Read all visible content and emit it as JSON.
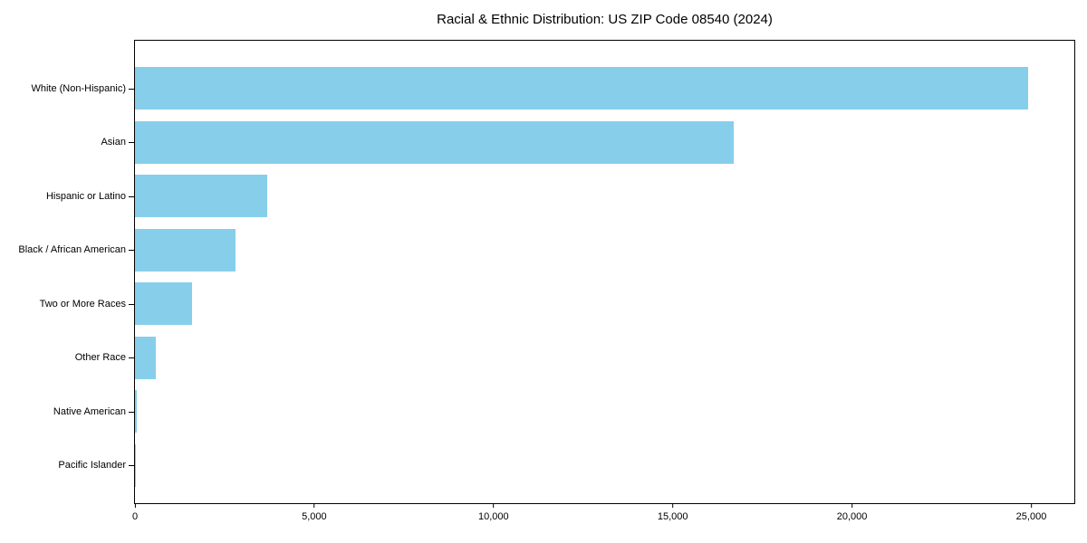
{
  "title": "Racial & Ethnic Distribution: US ZIP Code 08540 (2024)",
  "chart_data": {
    "type": "bar",
    "orientation": "horizontal",
    "title": "Racial & Ethnic Distribution: US ZIP Code 08540 (2024)",
    "categories": [
      "White (Non-Hispanic)",
      "Asian",
      "Hispanic or Latino",
      "Black / African American",
      "Two or More Races",
      "Other Race",
      "Native American",
      "Pacific Islander"
    ],
    "values": [
      24900,
      16700,
      3700,
      2800,
      1600,
      580,
      40,
      10
    ],
    "xlabel": "",
    "ylabel": "",
    "xlim": [
      0,
      26200
    ],
    "xticks": {
      "values": [
        0,
        5000,
        10000,
        15000,
        20000,
        25000
      ],
      "labels": [
        "0",
        "5,000",
        "10,000",
        "15,000",
        "20,000",
        "25,000"
      ]
    },
    "bar_color": "#87CEEB",
    "axis_color": "#000000",
    "background_color": "#ffffff",
    "grid": false,
    "legend": null
  }
}
